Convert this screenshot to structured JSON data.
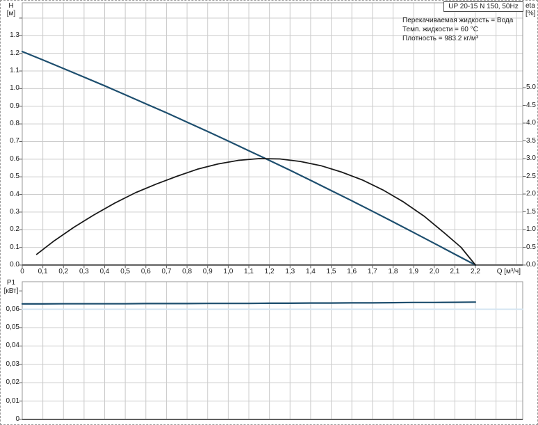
{
  "header": {
    "model": "UP 20-15 N 150, 50Hz",
    "info_lines": [
      "Перекачиваемая жидкость = Вода",
      "Темп. жидкости = 60 °C",
      "Плотность = 983.2 кг/м³"
    ]
  },
  "top_chart": {
    "left_axis": {
      "name": "H",
      "unit": "[м]",
      "tick_labels": [
        "1.3",
        "1.2",
        "1.1",
        "1.0",
        "0.9",
        "0.8",
        "0.7",
        "0.6",
        "0.5",
        "0.4",
        "0.3",
        "0.2",
        "0.1",
        "0.0"
      ],
      "tick_values": [
        1.3,
        1.2,
        1.1,
        1.0,
        0.9,
        0.8,
        0.7,
        0.6,
        0.5,
        0.4,
        0.3,
        0.2,
        0.1,
        0.0
      ],
      "extra_tick_values": [
        1.4
      ]
    },
    "right_axis": {
      "name": "eta",
      "unit": "[%]",
      "tick_labels": [
        "5.0",
        "4.5",
        "4.0",
        "3.5",
        "3.0",
        "2.5",
        "2.0",
        "1.5",
        "1.0",
        "0.5",
        "0.0"
      ],
      "tick_values": [
        5.0,
        4.5,
        4.0,
        3.5,
        3.0,
        2.5,
        2.0,
        1.5,
        1.0,
        0.5,
        0.0
      ]
    },
    "x_axis": {
      "label": "Q [м³/ч]",
      "tick_labels": [
        "0",
        "0,1",
        "0,2",
        "0,3",
        "0,4",
        "0,5",
        "0,6",
        "0,7",
        "0,8",
        "0,9",
        "1,0",
        "1,1",
        "1,2",
        "1,3",
        "1,4",
        "1,5",
        "1,6",
        "1,7",
        "1,8",
        "1,9",
        "2,0",
        "2,1",
        "2,2"
      ],
      "tick_values": [
        0,
        0.1,
        0.2,
        0.3,
        0.4,
        0.5,
        0.6,
        0.7,
        0.8,
        0.9,
        1.0,
        1.1,
        1.2,
        1.3,
        1.4,
        1.5,
        1.6,
        1.7,
        1.8,
        1.9,
        2.0,
        2.1,
        2.2
      ],
      "grid_extra": [
        2.3,
        2.4
      ]
    }
  },
  "bottom_chart": {
    "left_axis": {
      "name": "P1",
      "unit": "[кВт]",
      "tick_labels": [
        "0,06",
        "0,05",
        "0,04",
        "0,03",
        "0,02",
        "0,01",
        "0"
      ],
      "tick_values": [
        0.06,
        0.05,
        0.04,
        0.03,
        0.02,
        0.01,
        0
      ],
      "extra_tick_values": [
        0.07
      ]
    }
  },
  "chart_data": [
    {
      "type": "line",
      "name": "head-curve H(Q)",
      "axis": "H",
      "xlabel": "Q [м³/ч]",
      "ylabel": "H [м]",
      "xlim": [
        0,
        2.43
      ],
      "ylim": [
        0,
        1.49
      ],
      "x": [
        0,
        0.1,
        0.2,
        0.3,
        0.4,
        0.5,
        0.6,
        0.7,
        0.8,
        0.9,
        1.0,
        1.1,
        1.2,
        1.3,
        1.4,
        1.5,
        1.6,
        1.7,
        1.8,
        1.9,
        2.0,
        2.1,
        2.2
      ],
      "y": [
        1.21,
        1.163,
        1.114,
        1.065,
        1.016,
        0.965,
        0.914,
        0.863,
        0.81,
        0.757,
        0.703,
        0.648,
        0.593,
        0.537,
        0.48,
        0.422,
        0.364,
        0.305,
        0.245,
        0.184,
        0.123,
        0.061,
        0.0
      ]
    },
    {
      "type": "line",
      "name": "efficiency-curve eta(Q)",
      "axis": "eta",
      "xlabel": "Q [м³/ч]",
      "ylabel": "eta [%]",
      "xlim": [
        0,
        2.43
      ],
      "ylim": [
        0,
        5.0
      ],
      "x": [
        0.07,
        0.15,
        0.25,
        0.35,
        0.45,
        0.55,
        0.65,
        0.75,
        0.85,
        0.95,
        1.05,
        1.15,
        1.25,
        1.35,
        1.45,
        1.55,
        1.65,
        1.75,
        1.85,
        1.95,
        2.05,
        2.13,
        2.2
      ],
      "y": [
        0.3,
        0.66,
        1.06,
        1.42,
        1.75,
        2.04,
        2.28,
        2.5,
        2.7,
        2.85,
        2.95,
        3.0,
        2.99,
        2.92,
        2.8,
        2.62,
        2.4,
        2.12,
        1.78,
        1.38,
        0.9,
        0.5,
        0.0
      ]
    },
    {
      "type": "line",
      "name": "power-curve P1(Q)",
      "axis": "P1",
      "xlabel": "Q [м³/ч]",
      "ylabel": "P1 [кВт]",
      "xlim": [
        0,
        2.43
      ],
      "ylim": [
        0,
        0.075
      ],
      "x": [
        0,
        0.1,
        0.2,
        0.3,
        0.4,
        0.5,
        0.6,
        0.7,
        0.8,
        0.9,
        1.0,
        1.1,
        1.2,
        1.3,
        1.4,
        1.5,
        1.6,
        1.7,
        1.8,
        1.9,
        2.0,
        2.1,
        2.2
      ],
      "y": [
        0.0629,
        0.0629,
        0.063,
        0.063,
        0.063,
        0.063,
        0.0631,
        0.0631,
        0.0631,
        0.0632,
        0.0632,
        0.0632,
        0.0633,
        0.0633,
        0.0634,
        0.0634,
        0.0635,
        0.0635,
        0.0636,
        0.0637,
        0.0637,
        0.0638,
        0.0639
      ]
    },
    {
      "type": "line",
      "name": "power-reference-line",
      "axis": "P1",
      "x": [
        0,
        2.43
      ],
      "y": [
        0.06,
        0.06
      ]
    }
  ],
  "colors": {
    "curve_blue": "#1d4e6e",
    "curve_black": "#1a1a1a",
    "ref_light_blue": "#d6e6f2",
    "grid": "#cccccc",
    "border": "#979797",
    "axis": "#5f5f5f",
    "text": "#1a1a1a"
  }
}
